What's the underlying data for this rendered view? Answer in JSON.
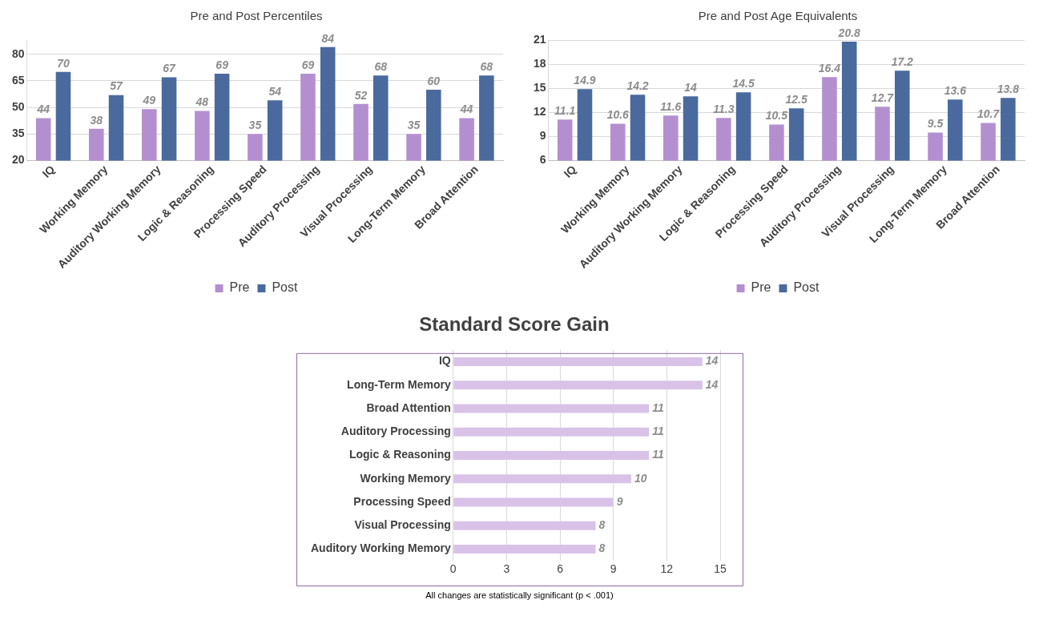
{
  "chart_data": [
    {
      "type": "bar",
      "title": "Pre and Post Percentiles",
      "categories": [
        "IQ",
        "Working Memory",
        "Auditory Working Memory",
        "Logic & Reasoning",
        "Processing Speed",
        "Auditory Processing",
        "Visual Processing",
        "Long-Term Memory",
        "Broad Attention"
      ],
      "series": [
        {
          "name": "Pre",
          "color": "#b48fd0",
          "values": [
            44,
            38,
            49,
            48,
            35,
            69,
            52,
            35,
            44
          ]
        },
        {
          "name": "Post",
          "color": "#4a6a9e",
          "values": [
            70,
            57,
            67,
            69,
            54,
            84,
            68,
            60,
            68
          ]
        }
      ],
      "ylim": [
        20,
        88
      ],
      "yticks": [
        20,
        35,
        50,
        65,
        80
      ],
      "grid": "y",
      "legend": "bottom",
      "data_labels": true
    },
    {
      "type": "bar",
      "title": "Pre and Post Age Equivalents",
      "categories": [
        "IQ",
        "Working Memory",
        "Auditory Working Memory",
        "Logic & Reasoning",
        "Processing Speed",
        "Auditory Processing",
        "Visual Processing",
        "Long-Term Memory",
        "Broad Attention"
      ],
      "series": [
        {
          "name": "Pre",
          "color": "#b48fd0",
          "values": [
            11.1,
            10.6,
            11.6,
            11.3,
            10.5,
            16.4,
            12.7,
            9.5,
            10.7
          ]
        },
        {
          "name": "Post",
          "color": "#4a6a9e",
          "values": [
            14.9,
            14.2,
            14,
            14.5,
            12.5,
            20.8,
            17.2,
            13.6,
            13.8
          ]
        }
      ],
      "ylim": [
        6,
        21
      ],
      "yticks": [
        6,
        9,
        12,
        15,
        18,
        21
      ],
      "grid": "y",
      "legend": "bottom",
      "data_labels": true
    },
    {
      "type": "bar",
      "orientation": "horizontal",
      "title": "Standard Score Gain",
      "categories": [
        "IQ",
        "Long-Term Memory",
        "Broad Attention",
        "Auditory Processing",
        "Logic & Reasoning",
        "Working Memory",
        "Processing Speed",
        "Visual Processing",
        "Auditory Working Memory"
      ],
      "values": [
        14,
        14,
        11,
        11,
        11,
        10,
        9,
        8,
        8
      ],
      "color": "#d9c2e8",
      "xlim": [
        0,
        15
      ],
      "xticks": [
        0,
        3,
        6,
        9,
        12,
        15
      ],
      "grid": "x",
      "data_labels": true,
      "annotations": [
        "All changes are statistically significant (p < .001)"
      ]
    }
  ]
}
